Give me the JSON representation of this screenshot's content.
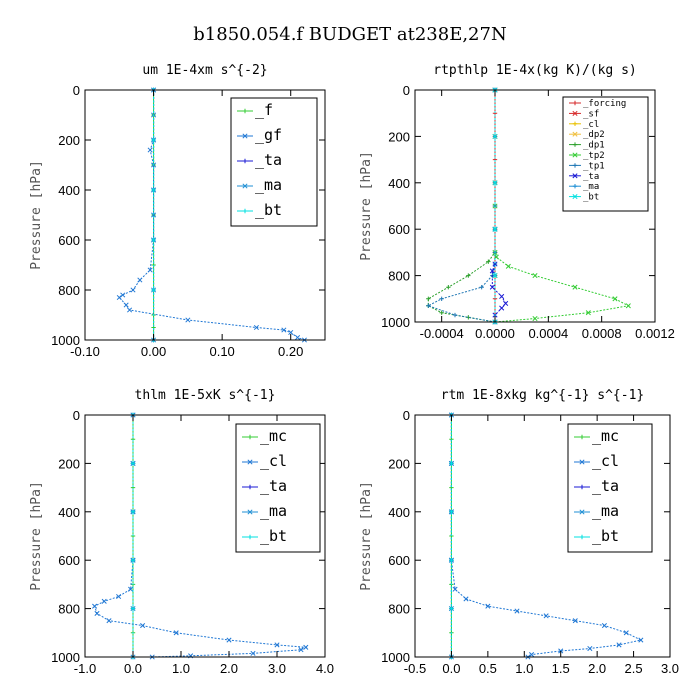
{
  "figure_title": "b1850.054.f  BUDGET at238E,27N",
  "chart_data": [
    {
      "type": "line",
      "title": "um  1E-4xm s^{-2}",
      "ylabel": "Pressure [hPa]",
      "xlim": [
        -0.1,
        0.25
      ],
      "ylim": [
        0,
        1000
      ],
      "y_inverted": true,
      "xticks": [
        -0.1,
        0.0,
        0.1,
        0.2
      ],
      "xtick_labels": [
        "-0.10",
        "0.00",
        "0.10",
        "0.20"
      ],
      "yticks": [
        0,
        200,
        400,
        600,
        800,
        1000
      ],
      "ytick_labels": [
        "0",
        "200",
        "400",
        "600",
        "800",
        "1000"
      ],
      "legend_position": "top-right",
      "series": [
        {
          "name": "_f",
          "color": "#33cc33",
          "x": [
            0.0,
            0.0,
            0.0,
            0.0,
            0.0,
            0.0,
            0.0,
            0.0,
            0.0,
            0.0,
            0.0,
            0.0
          ],
          "y": [
            0,
            100,
            200,
            300,
            400,
            500,
            600,
            700,
            800,
            900,
            950,
            1000
          ]
        },
        {
          "name": "_gf",
          "color": "#1f77d4",
          "x": [
            0.0,
            0.0,
            0.0,
            -0.005,
            0.0,
            0.0,
            0.0,
            0.0,
            -0.005,
            -0.02,
            -0.03,
            -0.045,
            -0.05,
            -0.04,
            -0.035,
            0.05,
            0.15,
            0.19,
            0.2,
            0.21,
            0.22
          ],
          "y": [
            0,
            100,
            200,
            240,
            300,
            400,
            500,
            600,
            720,
            760,
            800,
            820,
            830,
            860,
            880,
            920,
            950,
            960,
            970,
            990,
            1000
          ]
        },
        {
          "name": "_ta",
          "color": "#1a1ad4",
          "x": [
            0.0,
            0.0,
            0.0,
            0.0,
            0.0,
            0.0
          ],
          "y": [
            0,
            200,
            400,
            600,
            800,
            1000
          ]
        },
        {
          "name": "_ma",
          "color": "#1f8fd4",
          "x": [
            0.0,
            0.0,
            0.0,
            0.0,
            0.0,
            0.0
          ],
          "y": [
            0,
            200,
            400,
            600,
            800,
            1000
          ]
        },
        {
          "name": "_bt",
          "color": "#00e0e0",
          "x": [
            0.0,
            0.0,
            0.0,
            0.0,
            0.0,
            0.0
          ],
          "y": [
            0,
            200,
            400,
            600,
            800,
            1000
          ]
        }
      ]
    },
    {
      "type": "line",
      "title": "rtpthlp  1E-4x(kg K)/(kg s)",
      "ylabel": "Pressure [hPa]",
      "xlim": [
        -0.0006,
        0.0012
      ],
      "ylim": [
        0,
        1000
      ],
      "y_inverted": true,
      "xticks": [
        -0.0004,
        0.0,
        0.0004,
        0.0008,
        0.0012
      ],
      "xtick_labels": [
        "-0.0004",
        "0.0000",
        "0.0004",
        "0.0008",
        "0.0012"
      ],
      "yticks": [
        0,
        200,
        400,
        600,
        800,
        1000
      ],
      "ytick_labels": [
        "0",
        "200",
        "400",
        "600",
        "800",
        "1000"
      ],
      "legend_position": "top-right",
      "series": [
        {
          "name": "_forcing",
          "color": "#d62728",
          "x": [
            0,
            0,
            0,
            0,
            0,
            0,
            0,
            0,
            0,
            0,
            0
          ],
          "y": [
            0,
            100,
            200,
            300,
            400,
            500,
            600,
            700,
            800,
            900,
            1000
          ]
        },
        {
          "name": "_sf",
          "color": "#d62728",
          "x": [
            0,
            0,
            0,
            0,
            0,
            0
          ],
          "y": [
            0,
            200,
            400,
            600,
            800,
            1000
          ]
        },
        {
          "name": "_cl",
          "color": "#e8c000",
          "x": [
            0,
            0,
            0,
            0,
            0,
            0
          ],
          "y": [
            0,
            200,
            400,
            600,
            800,
            1000
          ]
        },
        {
          "name": "_dp2",
          "color": "#f0c040",
          "x": [
            0,
            0,
            0,
            0,
            0,
            0
          ],
          "y": [
            0,
            200,
            400,
            600,
            800,
            1000
          ]
        },
        {
          "name": "_dp1",
          "color": "#2ca02c",
          "x": [
            0,
            0,
            0,
            -5e-05,
            -0.0002,
            -0.00035,
            -0.0005,
            -0.0005,
            -0.0004,
            -0.0002,
            0
          ],
          "y": [
            0,
            500,
            700,
            740,
            800,
            850,
            900,
            930,
            960,
            980,
            1000
          ]
        },
        {
          "name": "_tp2",
          "color": "#33cc33",
          "x": [
            0,
            0,
            0,
            1e-05,
            0.0001,
            0.0003,
            0.0006,
            0.0009,
            0.001,
            0.0007,
            0.0003,
            0
          ],
          "y": [
            0,
            500,
            700,
            720,
            760,
            800,
            850,
            900,
            930,
            960,
            985,
            1000
          ]
        },
        {
          "name": "_tp1",
          "color": "#1f77b4",
          "x": [
            0,
            0,
            0,
            0,
            -2e-05,
            -0.0001,
            -0.0004,
            -0.0005,
            -0.0003,
            0
          ],
          "y": [
            0,
            500,
            700,
            750,
            800,
            850,
            900,
            930,
            970,
            1000
          ]
        },
        {
          "name": "_ta",
          "color": "#1a1ad4",
          "x": [
            0,
            0,
            0,
            -2e-05,
            -2e-05,
            5e-05,
            8e-05,
            5e-05,
            0,
            0
          ],
          "y": [
            0,
            600,
            750,
            780,
            850,
            890,
            920,
            940,
            970,
            1000
          ]
        },
        {
          "name": "_ma",
          "color": "#1f8fd4",
          "x": [
            0,
            0,
            0,
            0,
            0,
            0
          ],
          "y": [
            0,
            200,
            400,
            600,
            800,
            1000
          ]
        },
        {
          "name": "_bt",
          "color": "#00e0e0",
          "x": [
            0,
            0,
            0,
            0,
            0,
            0
          ],
          "y": [
            0,
            200,
            400,
            600,
            800,
            1000
          ]
        }
      ]
    },
    {
      "type": "line",
      "title": "thlm  1E-5xK s^{-1}",
      "ylabel": "Pressure [hPa]",
      "xlim": [
        -1.0,
        4.0
      ],
      "ylim": [
        0,
        1000
      ],
      "y_inverted": true,
      "xticks": [
        -1.0,
        0.0,
        1.0,
        2.0,
        3.0,
        4.0
      ],
      "xtick_labels": [
        "-1.0",
        "0.0",
        "1.0",
        "2.0",
        "3.0",
        "4.0"
      ],
      "yticks": [
        0,
        200,
        400,
        600,
        800,
        1000
      ],
      "ytick_labels": [
        "0",
        "200",
        "400",
        "600",
        "800",
        "1000"
      ],
      "legend_position": "top-right",
      "series": [
        {
          "name": "_mc",
          "color": "#33cc33",
          "x": [
            0,
            0,
            0,
            0,
            0,
            0,
            0,
            0,
            0,
            0,
            0
          ],
          "y": [
            0,
            100,
            200,
            300,
            400,
            500,
            600,
            700,
            800,
            900,
            1000
          ]
        },
        {
          "name": "_cl",
          "color": "#1f77d4",
          "x": [
            0,
            0,
            0,
            0,
            -0.05,
            -0.3,
            -0.6,
            -0.8,
            -0.75,
            -0.5,
            0.2,
            0.9,
            2.0,
            3.0,
            3.6,
            3.5,
            2.5,
            1.2,
            0.4
          ],
          "y": [
            0,
            200,
            400,
            600,
            720,
            750,
            770,
            790,
            820,
            850,
            870,
            900,
            930,
            950,
            960,
            970,
            985,
            995,
            1000
          ]
        },
        {
          "name": "_ta",
          "color": "#1a1ad4",
          "x": [
            0,
            0,
            0,
            0,
            0,
            0
          ],
          "y": [
            0,
            200,
            400,
            600,
            800,
            1000
          ]
        },
        {
          "name": "_ma",
          "color": "#1f8fd4",
          "x": [
            0,
            0,
            0,
            0,
            0,
            0
          ],
          "y": [
            0,
            200,
            400,
            600,
            800,
            1000
          ]
        },
        {
          "name": "_bt",
          "color": "#00e0e0",
          "x": [
            0,
            0,
            0,
            0,
            0,
            0
          ],
          "y": [
            0,
            200,
            400,
            600,
            800,
            1000
          ]
        }
      ]
    },
    {
      "type": "line",
      "title": "rtm  1E-8xkg kg^{-1} s^{-1}",
      "ylabel": "Pressure [hPa]",
      "xlim": [
        -0.5,
        3.0
      ],
      "ylim": [
        0,
        1000
      ],
      "y_inverted": true,
      "xticks": [
        -0.5,
        0.0,
        0.5,
        1.0,
        1.5,
        2.0,
        2.5,
        3.0
      ],
      "xtick_labels": [
        "-0.5",
        "0.0",
        "0.5",
        "1.0",
        "1.5",
        "2.0",
        "2.5",
        "3.0"
      ],
      "yticks": [
        0,
        200,
        400,
        600,
        800,
        1000
      ],
      "ytick_labels": [
        "0",
        "200",
        "400",
        "600",
        "800",
        "1000"
      ],
      "legend_position": "top-right",
      "series": [
        {
          "name": "_mc",
          "color": "#33cc33",
          "x": [
            0,
            0,
            0,
            0,
            0,
            0,
            0,
            0,
            0,
            0,
            0
          ],
          "y": [
            0,
            100,
            200,
            300,
            400,
            500,
            600,
            700,
            800,
            900,
            1000
          ]
        },
        {
          "name": "_cl",
          "color": "#1f77d4",
          "x": [
            0,
            0,
            0,
            0,
            0.05,
            0.2,
            0.5,
            0.9,
            1.3,
            1.7,
            2.1,
            2.4,
            2.6,
            2.3,
            1.9,
            1.5,
            1.1,
            1.05
          ],
          "y": [
            0,
            200,
            400,
            600,
            720,
            760,
            790,
            810,
            830,
            850,
            870,
            900,
            930,
            950,
            965,
            975,
            990,
            1000
          ]
        },
        {
          "name": "_ta",
          "color": "#1a1ad4",
          "x": [
            0,
            0,
            0,
            0,
            0,
            0
          ],
          "y": [
            0,
            200,
            400,
            600,
            800,
            1000
          ]
        },
        {
          "name": "_ma",
          "color": "#1f8fd4",
          "x": [
            0,
            0,
            0,
            0,
            0,
            0
          ],
          "y": [
            0,
            200,
            400,
            600,
            800,
            1000
          ]
        },
        {
          "name": "_bt",
          "color": "#00e0e0",
          "x": [
            0,
            0,
            0,
            0,
            0,
            0
          ],
          "y": [
            0,
            200,
            400,
            600,
            800,
            1000
          ]
        }
      ]
    }
  ]
}
